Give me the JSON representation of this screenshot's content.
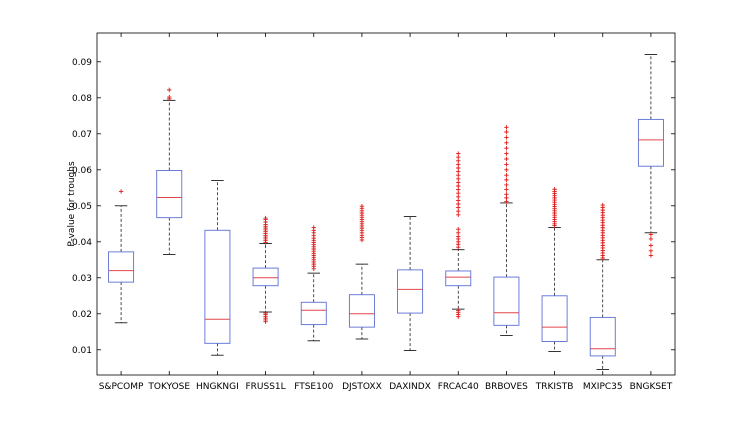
{
  "chart_data": {
    "type": "box",
    "title": "",
    "xlabel": "",
    "ylabel": "P-value for troughs",
    "ylim": [
      0.003,
      0.098
    ],
    "yticks": [
      0.01,
      0.02,
      0.03,
      0.04,
      0.05,
      0.06,
      0.07,
      0.08,
      0.09
    ],
    "ytick_labels": [
      "0.01",
      "0.02",
      "0.03",
      "0.04",
      "0.05",
      "0.06",
      "0.07",
      "0.08",
      "0.09"
    ],
    "grid": false,
    "colors": {
      "box": "#5b6fd6",
      "median": "#e0474c",
      "whisker": "#000000",
      "outlier": "#e01b1b",
      "axis": "#000000"
    },
    "categories": [
      "S&PCOMP",
      "TOKYOSE",
      "HNGKNGI",
      "FRUSS1L",
      "FTSE100",
      "DJSTOXX",
      "DAXINDX",
      "FRCAC40",
      "BRBOVES",
      "TRKISTB",
      "MXIPC35",
      "BNGKSET"
    ],
    "boxes": [
      {
        "name": "S&PCOMP",
        "whislo": 0.0175,
        "q1": 0.0288,
        "med": 0.032,
        "q3": 0.0372,
        "whishi": 0.05,
        "fliers": [
          0.054
        ]
      },
      {
        "name": "TOKYOSE",
        "whislo": 0.0365,
        "q1": 0.0467,
        "med": 0.0523,
        "q3": 0.0598,
        "whishi": 0.0793,
        "fliers": [
          0.0797,
          0.0802,
          0.0822
        ]
      },
      {
        "name": "HNGKNGI",
        "whislo": 0.0085,
        "q1": 0.0118,
        "med": 0.0185,
        "q3": 0.0432,
        "whishi": 0.057,
        "fliers": []
      },
      {
        "name": "FRUSS1L",
        "whislo": 0.0205,
        "q1": 0.0278,
        "med": 0.03,
        "q3": 0.0327,
        "whishi": 0.0395,
        "fliers": [
          0.0178,
          0.0183,
          0.0188,
          0.0193,
          0.0198,
          0.0202,
          0.0398,
          0.0403,
          0.0408,
          0.0413,
          0.0418,
          0.0423,
          0.0428,
          0.0433,
          0.0438,
          0.0443,
          0.0448,
          0.0455,
          0.0462,
          0.0466
        ]
      },
      {
        "name": "FTSE100",
        "whislo": 0.0125,
        "q1": 0.017,
        "med": 0.021,
        "q3": 0.0232,
        "whishi": 0.0313,
        "fliers": [
          0.0325,
          0.0332,
          0.0338,
          0.0344,
          0.035,
          0.0356,
          0.0362,
          0.0368,
          0.0374,
          0.038,
          0.0386,
          0.0392,
          0.0398,
          0.0404,
          0.041,
          0.0417,
          0.0425,
          0.0432,
          0.044
        ]
      },
      {
        "name": "DJSTOXX",
        "whislo": 0.013,
        "q1": 0.0163,
        "med": 0.02,
        "q3": 0.0253,
        "whishi": 0.0338,
        "fliers": [
          0.0405,
          0.0412,
          0.0418,
          0.0425,
          0.0432,
          0.0438,
          0.0444,
          0.045,
          0.0456,
          0.0462,
          0.0468,
          0.0474,
          0.048,
          0.0486,
          0.0493,
          0.0499
        ]
      },
      {
        "name": "DAXINDX",
        "whislo": 0.0098,
        "q1": 0.0202,
        "med": 0.0268,
        "q3": 0.0322,
        "whishi": 0.047,
        "fliers": []
      },
      {
        "name": "FRCAC40",
        "whislo": 0.0213,
        "q1": 0.0278,
        "med": 0.0302,
        "q3": 0.0319,
        "whishi": 0.0378,
        "fliers": [
          0.0192,
          0.0198,
          0.0204,
          0.0209,
          0.0385,
          0.0393,
          0.04,
          0.0408,
          0.0415,
          0.0425,
          0.0435,
          0.0475,
          0.0485,
          0.0495,
          0.0505,
          0.0515,
          0.0525,
          0.0535,
          0.0545,
          0.0555,
          0.0565,
          0.0575,
          0.0585,
          0.0595,
          0.0605,
          0.0615,
          0.0625,
          0.0635,
          0.0645
        ]
      },
      {
        "name": "BRBOVES",
        "whislo": 0.014,
        "q1": 0.0168,
        "med": 0.0203,
        "q3": 0.0302,
        "whishi": 0.0508,
        "fliers": [
          0.0512,
          0.0522,
          0.0532,
          0.0545,
          0.0558,
          0.0572,
          0.0585,
          0.06,
          0.0615,
          0.063,
          0.0645,
          0.066,
          0.0675,
          0.069,
          0.0705,
          0.0718
        ]
      },
      {
        "name": "TRKISTB",
        "whislo": 0.0095,
        "q1": 0.0123,
        "med": 0.0163,
        "q3": 0.025,
        "whishi": 0.044,
        "fliers": [
          0.0445,
          0.045,
          0.0456,
          0.0462,
          0.0468,
          0.0474,
          0.048,
          0.0486,
          0.0492,
          0.0498,
          0.0504,
          0.051,
          0.0516,
          0.0522,
          0.0528,
          0.0534,
          0.054,
          0.0546
        ]
      },
      {
        "name": "MXIPC35",
        "whislo": 0.0045,
        "q1": 0.0083,
        "med": 0.0103,
        "q3": 0.019,
        "whishi": 0.035,
        "fliers": [
          0.0355,
          0.0362,
          0.0369,
          0.0376,
          0.0383,
          0.039,
          0.0397,
          0.0404,
          0.0411,
          0.0418,
          0.0425,
          0.0432,
          0.0439,
          0.0446,
          0.0453,
          0.046,
          0.0467,
          0.0474,
          0.0481,
          0.0488,
          0.0495,
          0.0502
        ]
      },
      {
        "name": "BNGKSET",
        "whislo": 0.0425,
        "q1": 0.061,
        "med": 0.0683,
        "q3": 0.074,
        "whishi": 0.092,
        "fliers": [
          0.0362,
          0.0375,
          0.039,
          0.0408,
          0.042
        ]
      }
    ]
  }
}
